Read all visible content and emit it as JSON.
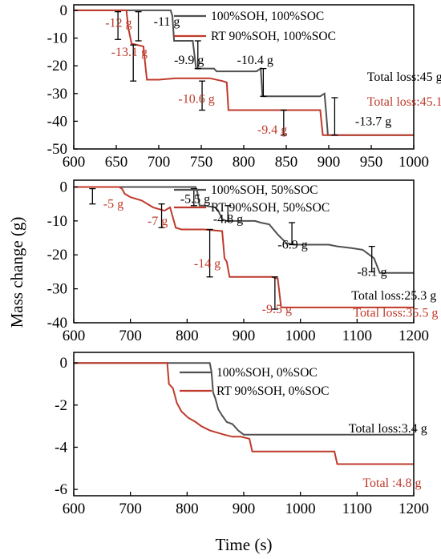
{
  "figure": {
    "ylabel": "Mass change (g)",
    "xlabel": "Time (s)"
  },
  "colors": {
    "black_series": "#505050",
    "red_series": "#bf3a2b",
    "red_text": "#bf3a2b",
    "axis": "#000000"
  },
  "chart_data": [
    {
      "type": "line",
      "xlim": [
        600,
        1000
      ],
      "ylim": [
        -50,
        2
      ],
      "xticks": [
        600,
        650,
        700,
        750,
        800,
        850,
        900,
        950,
        1000
      ],
      "yticks": [
        0,
        -10,
        -20,
        -30,
        -40,
        -50
      ],
      "series": [
        {
          "name": "100%SOH, 100%SOC",
          "color": "black",
          "points": [
            [
              600,
              0
            ],
            [
              714,
              0
            ],
            [
              716,
              -2
            ],
            [
              718,
              -11
            ],
            [
              740,
              -11
            ],
            [
              742,
              -16
            ],
            [
              744,
              -21
            ],
            [
              765,
              -21
            ],
            [
              768,
              -22
            ],
            [
              790,
              -22
            ],
            [
              815,
              -22
            ],
            [
              820,
              -21
            ],
            [
              822,
              -31
            ],
            [
              890,
              -31
            ],
            [
              895,
              -30
            ],
            [
              897,
              -37
            ],
            [
              899,
              -45
            ],
            [
              1000,
              -45
            ]
          ]
        },
        {
          "name": "RT  90%SOH, 100%SOC",
          "color": "red",
          "points": [
            [
              600,
              0
            ],
            [
              658,
              0
            ],
            [
              662,
              0
            ],
            [
              664,
              -6
            ],
            [
              668,
              -12
            ],
            [
              682,
              -13
            ],
            [
              684,
              -19
            ],
            [
              686,
              -25
            ],
            [
              700,
              -25
            ],
            [
              720,
              -24.5
            ],
            [
              760,
              -24.5
            ],
            [
              775,
              -25.5
            ],
            [
              780,
              -26
            ],
            [
              782,
              -36
            ],
            [
              890,
              -36
            ],
            [
              893,
              -45
            ],
            [
              1000,
              -45
            ]
          ]
        }
      ],
      "annotations": [
        {
          "text": "-12 g",
          "color": "red",
          "x": 637,
          "y": -4.5,
          "bar": [
            652,
            -0.5,
            -10.5
          ]
        },
        {
          "text": "-11 g",
          "color": "black",
          "x": 694,
          "y": -4,
          "bar": [
            676,
            -0.5,
            -11
          ]
        },
        {
          "text": "-13.1 g",
          "color": "red",
          "x": 644,
          "y": -15,
          "bar": [
            670,
            -12.5,
            -25.5
          ]
        },
        {
          "text": "-9.9 g",
          "color": "black",
          "x": 718,
          "y": -18,
          "bar": [
            746,
            -11,
            -21
          ]
        },
        {
          "text": "-10.4 g",
          "color": "black",
          "x": 792,
          "y": -18,
          "bar": [
            823,
            -21,
            -31
          ]
        },
        {
          "text": "Total loss:45 g",
          "color": "black",
          "x": 945,
          "y": -24
        },
        {
          "text": "Total loss:45.1 g",
          "color": "red",
          "x": 945,
          "y": -33
        },
        {
          "text": "-10.6 g",
          "color": "red",
          "x": 723,
          "y": -32,
          "bar": [
            751,
            -25.5,
            -36
          ]
        },
        {
          "text": "-9.4 g",
          "color": "red",
          "x": 816,
          "y": -43,
          "bar": [
            847,
            -36,
            -45
          ]
        },
        {
          "text": "-13.7 g",
          "color": "black",
          "x": 931,
          "y": -40,
          "bar": [
            907,
            -31.5,
            -45
          ]
        }
      ],
      "legend": {
        "position": "top-right"
      }
    },
    {
      "type": "line",
      "xlim": [
        600,
        1200
      ],
      "ylim": [
        -40,
        2
      ],
      "xticks": [
        600,
        700,
        800,
        900,
        1000,
        1100,
        1200
      ],
      "yticks": [
        0,
        -10,
        -20,
        -30,
        -40
      ],
      "series": [
        {
          "name": "100%SOH, 50%SOC",
          "color": "black",
          "points": [
            [
              600,
              0
            ],
            [
              815,
              0
            ],
            [
              818,
              -1.5
            ],
            [
              822,
              -5.5
            ],
            [
              830,
              -5.5
            ],
            [
              850,
              -6
            ],
            [
              855,
              -7
            ],
            [
              862,
              -9.5
            ],
            [
              870,
              -10
            ],
            [
              920,
              -10
            ],
            [
              930,
              -10.5
            ],
            [
              945,
              -11
            ],
            [
              960,
              -14
            ],
            [
              975,
              -16.5
            ],
            [
              990,
              -17
            ],
            [
              1050,
              -17
            ],
            [
              1065,
              -17.5
            ],
            [
              1090,
              -18
            ],
            [
              1110,
              -18.5
            ],
            [
              1130,
              -21
            ],
            [
              1140,
              -25.3
            ],
            [
              1200,
              -25.3
            ]
          ]
        },
        {
          "name": "RT  90%SOH, 50%SOC",
          "color": "red",
          "points": [
            [
              600,
              0
            ],
            [
              680,
              0
            ],
            [
              685,
              -0.5
            ],
            [
              690,
              -2
            ],
            [
              700,
              -3
            ],
            [
              720,
              -4
            ],
            [
              740,
              -6
            ],
            [
              760,
              -7
            ],
            [
              770,
              -6
            ],
            [
              780,
              -12
            ],
            [
              790,
              -12.5
            ],
            [
              800,
              -12.5
            ],
            [
              830,
              -12.5
            ],
            [
              862,
              -13
            ],
            [
              866,
              -21
            ],
            [
              870,
              -22
            ],
            [
              875,
              -26.5
            ],
            [
              930,
              -26.5
            ],
            [
              950,
              -26.5
            ],
            [
              960,
              -27
            ],
            [
              966,
              -35.5
            ],
            [
              1200,
              -35.5
            ]
          ]
        }
      ],
      "annotations": [
        {
          "text": "-5 g",
          "color": "red",
          "x": 652,
          "y": -5,
          "bar": [
            633,
            -0.5,
            -5
          ]
        },
        {
          "text": "-5.5 g",
          "color": "black",
          "x": 788,
          "y": -3.5,
          "bar": [
            812,
            -0.5,
            -5.5
          ]
        },
        {
          "text": "-7 g",
          "color": "red",
          "x": 730,
          "y": -10,
          "bar": [
            755,
            -5,
            -12
          ]
        },
        {
          "text": "-4.8 g",
          "color": "black",
          "x": 846,
          "y": -9.5,
          "bar": [
            872,
            -5.5,
            -10
          ]
        },
        {
          "text": "-6.9 g",
          "color": "black",
          "x": 960,
          "y": -17,
          "bar": [
            985,
            -10.5,
            -17
          ]
        },
        {
          "text": "-14 g",
          "color": "red",
          "x": 812,
          "y": -22.5,
          "bar": [
            840,
            -12.5,
            -26.5
          ]
        },
        {
          "text": "-8.1 g",
          "color": "black",
          "x": 1100,
          "y": -25,
          "bar": [
            1126,
            -17.5,
            -25
          ]
        },
        {
          "text": "Total  loss:25.3 g",
          "color": "black",
          "x": 1090,
          "y": -32
        },
        {
          "text": "-9.5 g",
          "color": "red",
          "x": 932,
          "y": -36,
          "bar": [
            955,
            -26.5,
            -36
          ]
        },
        {
          "text": "Total  loss:35.5 g",
          "color": "red",
          "x": 1093,
          "y": -37
        }
      ],
      "legend": {
        "position": "top-right"
      }
    },
    {
      "type": "line",
      "xlim": [
        600,
        1200
      ],
      "ylim": [
        -6.3,
        0.5
      ],
      "xticks": [
        600,
        700,
        800,
        900,
        1000,
        1100,
        1200
      ],
      "yticks": [
        0,
        -2,
        -4,
        -6
      ],
      "series": [
        {
          "name": "100%SOH, 0%SOC",
          "color": "black",
          "points": [
            [
              600,
              0
            ],
            [
              840,
              0
            ],
            [
              843,
              -0.4
            ],
            [
              846,
              -1.4
            ],
            [
              850,
              -1.7
            ],
            [
              855,
              -2.2
            ],
            [
              862,
              -2.5
            ],
            [
              870,
              -2.8
            ],
            [
              880,
              -2.9
            ],
            [
              890,
              -3.2
            ],
            [
              900,
              -3.4
            ],
            [
              1200,
              -3.4
            ]
          ]
        },
        {
          "name": "RT  90%SOH, 0%SOC",
          "color": "red",
          "points": [
            [
              600,
              0
            ],
            [
              765,
              0
            ],
            [
              768,
              -1
            ],
            [
              775,
              -1.2
            ],
            [
              782,
              -1.9
            ],
            [
              790,
              -2.3
            ],
            [
              802,
              -2.6
            ],
            [
              815,
              -2.8
            ],
            [
              825,
              -3
            ],
            [
              840,
              -3.2
            ],
            [
              865,
              -3.4
            ],
            [
              880,
              -3.5
            ],
            [
              895,
              -3.5
            ],
            [
              910,
              -3.6
            ],
            [
              915,
              -4.2
            ],
            [
              1060,
              -4.2
            ],
            [
              1065,
              -4.8
            ],
            [
              1200,
              -4.8
            ]
          ]
        }
      ],
      "annotations": [
        {
          "text": "Total loss:3.4 g",
          "color": "black",
          "x": 1085,
          "y": -3.1
        },
        {
          "text": "Total :4.8 g",
          "color": "red",
          "x": 1110,
          "y": -5.7
        }
      ],
      "legend": {
        "position": "top-right"
      }
    }
  ]
}
